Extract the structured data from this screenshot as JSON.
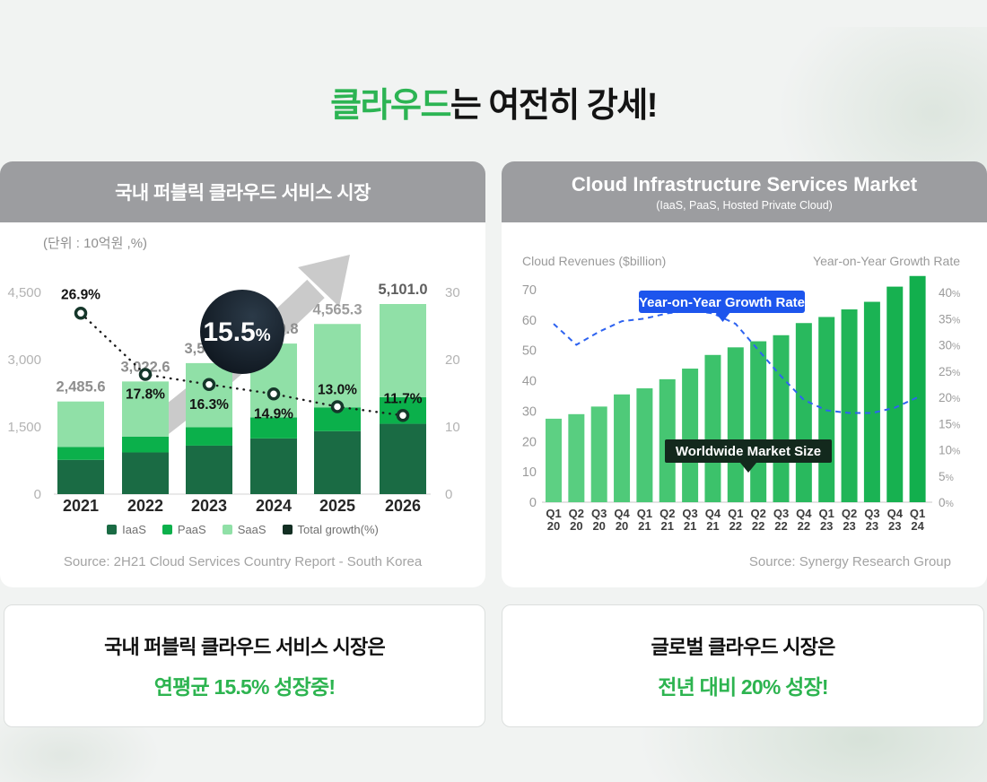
{
  "title": {
    "highlight": "클라우드",
    "rest": "는 여전히 강세!"
  },
  "colors": {
    "accent_green": "#2cb453",
    "header_gray": "#9c9da0",
    "iaas": "#1a6b44",
    "paas": "#0bb04b",
    "saas": "#90e0a7",
    "total_growth": "#122e22",
    "growth_line_left": "#1b1b1b",
    "badge_bg": "#141e2a",
    "arrow_gray": "#cacaca",
    "bar_color_start": "#5dd083",
    "bar_color_end": "#12af4d",
    "blue_line": "#2e63f0",
    "blue_tooltip_bg": "#1d55ed",
    "dark_tooltip_bg": "#13291d"
  },
  "left_card": {
    "header": "국내 퍼블릭 클라우드 서비스 시장",
    "unit_note": "(단위 : 10억원 ,%)",
    "source": "Source: 2H21 Cloud Services Country Report - South Korea",
    "badge": {
      "value": "15.5",
      "unit": "%"
    },
    "legend": [
      {
        "label": "IaaS",
        "color": "#1a6b44"
      },
      {
        "label": "PaaS",
        "color": "#0bb04b"
      },
      {
        "label": "SaaS",
        "color": "#90e0a7"
      },
      {
        "label": "Total growth(%)",
        "color": "#122e22"
      }
    ]
  },
  "right_card": {
    "header": "Cloud Infrastructure Services Market",
    "subheader": "(IaaS, PaaS, Hosted Private Cloud)",
    "left_axis_title": "Cloud Revenues ($billion)",
    "right_axis_title": "Year-on-Year Growth Rate",
    "growth_tooltip": "Year-on-Year Growth Rate",
    "size_tooltip": "Worldwide Market Size",
    "source": "Source: Synergy Research Group"
  },
  "takeaways": {
    "left": {
      "line1": "국내 퍼블릭 클라우드 서비스 시장은",
      "line2": "연평균 15.5% 성장중!"
    },
    "right": {
      "line1": "글로벌 클라우드 시장은",
      "line2": "전년 대비 20% 성장!"
    }
  },
  "chart_data": [
    {
      "id": "korea-public-cloud-market",
      "type": "bar",
      "stacked": true,
      "title": "국내 퍼블릭 클라우드 서비스 시장",
      "unit": "10억원, %",
      "categories": [
        "2021",
        "2022",
        "2023",
        "2024",
        "2025",
        "2026"
      ],
      "totals": [
        2485.6,
        3022.6,
        3515.3,
        4039.8,
        4565.3,
        5101.0
      ],
      "total_labels": [
        "2,485.6",
        "3,022.6",
        "3,515.3",
        "4,039.8",
        "4,565.3",
        "5,101.0"
      ],
      "stack_order_bottom_to_top": [
        "IaaS",
        "PaaS",
        "SaaS"
      ],
      "stack_fractions": {
        "IaaS": 0.37,
        "PaaS": 0.14,
        "SaaS": 0.49
      },
      "line_series": {
        "name": "Total growth(%)",
        "values": [
          26.9,
          17.8,
          16.3,
          14.9,
          13.0,
          11.7
        ],
        "labels": [
          "26.9%",
          "17.8%",
          "16.3%",
          "14.9%",
          "13.0%",
          "11.7%"
        ]
      },
      "highlight_cagr": "15.5%",
      "y_left": {
        "ticks": [
          {
            "v": 4500,
            "label": "4,500"
          },
          {
            "v": 3000,
            "label": "3,000"
          },
          {
            "v": 1500,
            "label": "1,500"
          },
          {
            "v": 0,
            "label": "0"
          }
        ],
        "max": 5300
      },
      "y_right": {
        "ticks": [
          {
            "v": 30,
            "label": "30"
          },
          {
            "v": 20,
            "label": "20"
          },
          {
            "v": 10,
            "label": "10"
          },
          {
            "v": 0,
            "label": "0"
          }
        ],
        "max": 30
      }
    },
    {
      "id": "global-cloud-infrastructure-market",
      "type": "bar+line",
      "title": "Cloud Infrastructure Services Market",
      "subtitle": "(IaaS, PaaS, Hosted Private Cloud)",
      "categories": [
        [
          "Q1",
          "20"
        ],
        [
          "Q2",
          "20"
        ],
        [
          "Q3",
          "20"
        ],
        [
          "Q4",
          "20"
        ],
        [
          "Q1",
          "21"
        ],
        [
          "Q2",
          "21"
        ],
        [
          "Q3",
          "21"
        ],
        [
          "Q4",
          "21"
        ],
        [
          "Q1",
          "22"
        ],
        [
          "Q2",
          "22"
        ],
        [
          "Q3",
          "22"
        ],
        [
          "Q4",
          "22"
        ],
        [
          "Q1",
          "23"
        ],
        [
          "Q2",
          "23"
        ],
        [
          "Q3",
          "23"
        ],
        [
          "Q4",
          "23"
        ],
        [
          "Q1",
          "24"
        ]
      ],
      "bar_series": {
        "name": "Worldwide Market Size",
        "unit": "$billion",
        "values": [
          27.5,
          29,
          31.5,
          35.5,
          37.5,
          40.5,
          44,
          48.5,
          51,
          53,
          55,
          59,
          61,
          63.5,
          66,
          71,
          74.5
        ]
      },
      "line_series": {
        "name": "Year-on-Year Growth Rate",
        "unit": "%",
        "values": [
          34,
          30,
          32.5,
          34.5,
          35,
          36,
          36.5,
          36,
          34,
          29,
          24,
          19.5,
          17.5,
          17,
          17,
          18,
          20
        ]
      },
      "y_left": {
        "title": "Cloud Revenues ($billion)",
        "ticks": [
          0,
          10,
          20,
          30,
          40,
          50,
          60,
          70
        ],
        "max": 70
      },
      "y_right": {
        "title": "Year-on-Year Growth Rate",
        "ticks": [
          0,
          5,
          10,
          15,
          20,
          25,
          30,
          35,
          40
        ],
        "max": 40
      }
    }
  ]
}
